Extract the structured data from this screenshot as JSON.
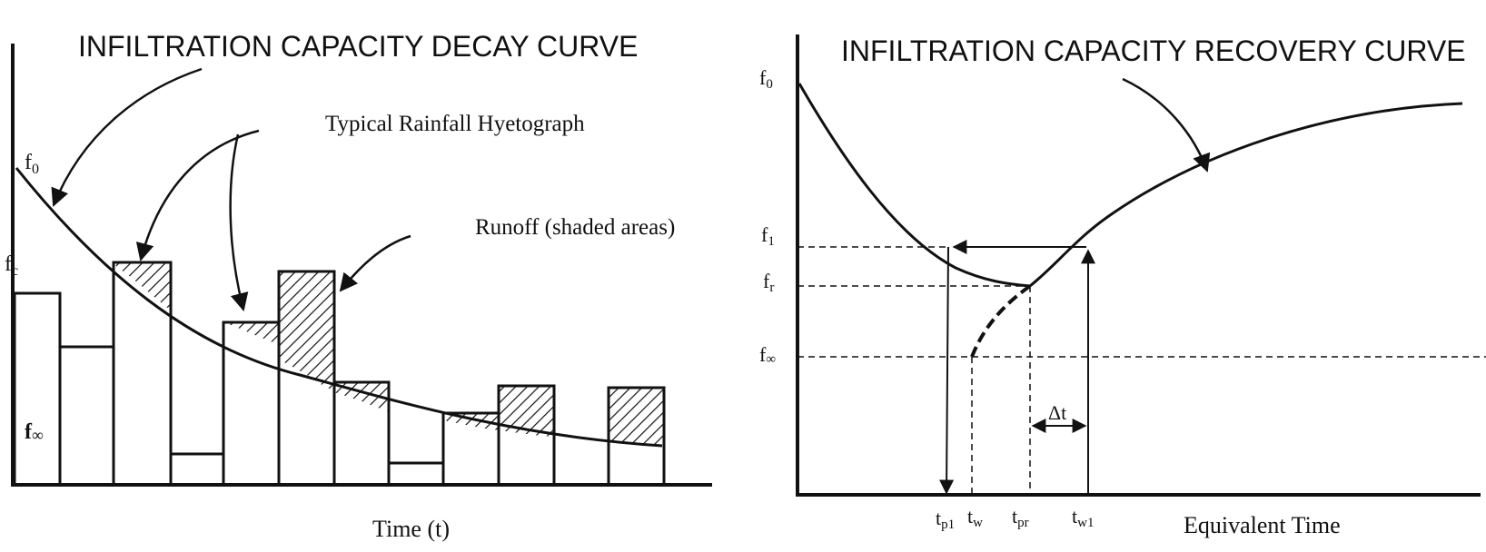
{
  "left_diagram": {
    "title": "INFILTRATION CAPACITY DECAY CURVE",
    "label_f0_sym": "f",
    "label_f0_sub": "0",
    "label_fc_sym": "f",
    "label_fc_sub": "c",
    "label_finf_sym": "f",
    "label_finf_sub": "∞",
    "hyetograph_label": "Typical Rainfall Hyetograph",
    "runoff_label": "Runoff (shaded areas)",
    "x_axis_label": "Time (t)"
  },
  "right_diagram": {
    "title": "INFILTRATION CAPACITY RECOVERY CURVE",
    "label_f0_sym": "f",
    "label_f0_sub": "0",
    "label_f1_sym": "f",
    "label_f1_sub": "1",
    "label_fr_sym": "f",
    "label_fr_sub": "r",
    "label_finf_sym": "f",
    "label_finf_sub": "∞",
    "label_tp1_sym": "t",
    "label_tp1_sub": "p1",
    "label_tw_sym": "t",
    "label_tw_sub": "w",
    "label_tpr_sym": "t",
    "label_tpr_sub": "pr",
    "label_tw1_sym": "t",
    "label_tw1_sub": "w1",
    "delta_t_label": "Δt",
    "x_axis_label": "Equivalent Time"
  },
  "colors": {
    "ink": "#111111",
    "background": "#ffffff"
  }
}
